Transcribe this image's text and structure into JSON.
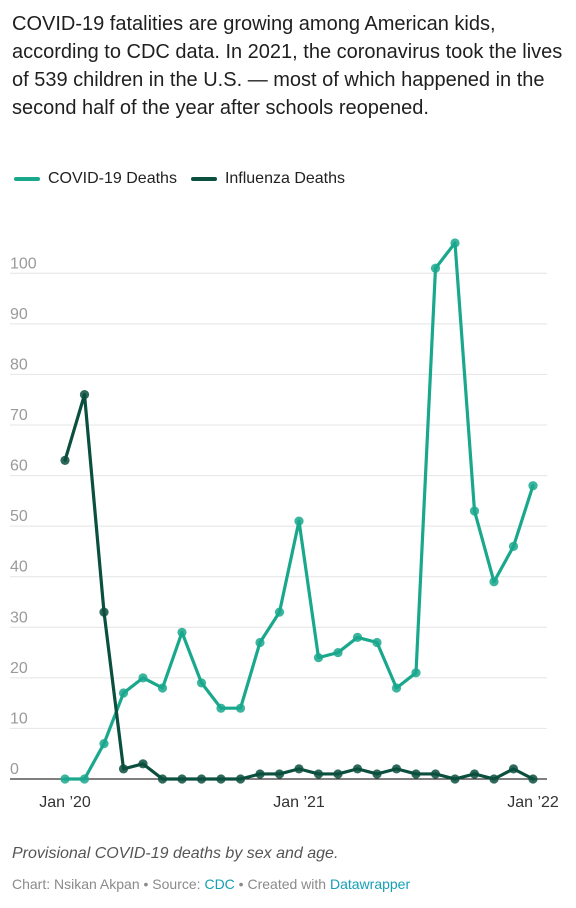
{
  "headline": "COVID-19 fatalities are growing among American kids, according to CDC data. In 2021, the coronavirus took the lives of 539 children in the U.S. — most of which happened in the second half of the year after schools reopened.",
  "legend": [
    {
      "label": "COVID-19 Deaths",
      "color": "#1aa88d"
    },
    {
      "label": "Influenza Deaths",
      "color": "#0b4f3e"
    }
  ],
  "chart_data": {
    "type": "line",
    "x": [
      "2020-01",
      "2020-02",
      "2020-03",
      "2020-04",
      "2020-05",
      "2020-06",
      "2020-07",
      "2020-08",
      "2020-09",
      "2020-10",
      "2020-11",
      "2020-12",
      "2021-01",
      "2021-02",
      "2021-03",
      "2021-04",
      "2021-05",
      "2021-06",
      "2021-07",
      "2021-08",
      "2021-09",
      "2021-10",
      "2021-11",
      "2021-12",
      "2022-01"
    ],
    "x_tick_labels": [
      {
        "x": "2020-01",
        "label": "Jan ’20"
      },
      {
        "x": "2021-01",
        "label": "Jan ’21"
      },
      {
        "x": "2022-01",
        "label": "Jan ’22"
      }
    ],
    "series": [
      {
        "name": "COVID-19 Deaths",
        "color": "#1aa88d",
        "values": [
          0,
          0,
          7,
          17,
          20,
          18,
          29,
          19,
          14,
          14,
          27,
          33,
          51,
          24,
          25,
          28,
          27,
          18,
          21,
          101,
          106,
          53,
          39,
          46,
          58
        ]
      },
      {
        "name": "Influenza Deaths",
        "color": "#0b4f3e",
        "values": [
          63,
          76,
          33,
          2,
          3,
          0,
          0,
          0,
          0,
          0,
          1,
          1,
          2,
          1,
          1,
          2,
          1,
          2,
          1,
          1,
          0,
          1,
          0,
          2,
          0
        ]
      }
    ],
    "ylim": [
      0,
      105
    ],
    "y_ticks": [
      0,
      10,
      20,
      30,
      40,
      50,
      60,
      70,
      80,
      90,
      100
    ],
    "grid": true,
    "legend_position": "top-left"
  },
  "note": "Provisional COVID-19 deaths by sex and age.",
  "footer": {
    "prefix": "Chart: Nsikan Akpan • Source: ",
    "source_link": "CDC",
    "middle": " • Created with ",
    "tool_link": "Datawrapper"
  }
}
